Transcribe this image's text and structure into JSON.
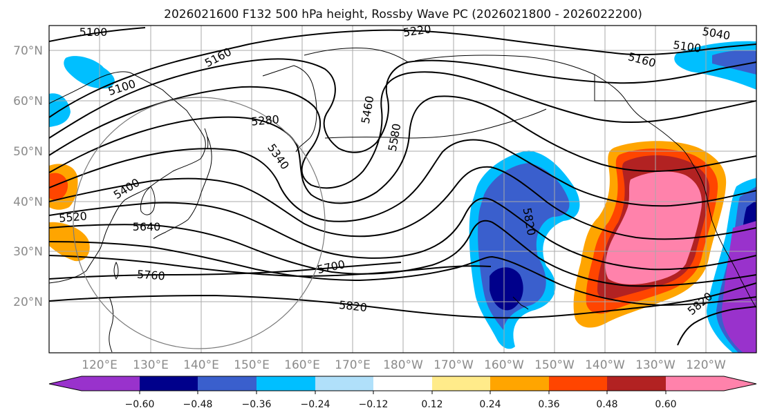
{
  "map": {
    "title": "2026021600 F132 500 hPa height, Rossby Wave PC (2026021800 - 2026022200)",
    "lat_labels": [
      "70°N",
      "60°N",
      "50°N",
      "40°N",
      "30°N",
      "20°N"
    ],
    "lon_labels": [
      "120°E",
      "130°E",
      "140°E",
      "150°E",
      "160°E",
      "170°E",
      "180°W",
      "170°W",
      "160°W",
      "150°W",
      "140°W",
      "130°W",
      "120°W"
    ],
    "contour_labels": [
      "5100",
      "5160",
      "5220",
      "5040",
      "5100",
      "5160",
      "5100",
      "5280",
      "5340",
      "5460",
      "5580",
      "5400",
      "5520",
      "5640",
      "5820",
      "5700",
      "5760",
      "5820",
      "5820"
    ],
    "colorbar": {
      "ticks": [
        "−0.60",
        "−0.48",
        "−0.36",
        "−0.24",
        "−0.12",
        "0.12",
        "0.24",
        "0.36",
        "0.48",
        "0.60"
      ],
      "colors": [
        "#9932cc",
        "#00008b",
        "#3a5fcd",
        "#00bfff",
        "#b0e0fa",
        "#ffffff",
        "#ffeb8a",
        "#ffa500",
        "#ff4500",
        "#b22222",
        "#ff82ab"
      ]
    }
  }
}
